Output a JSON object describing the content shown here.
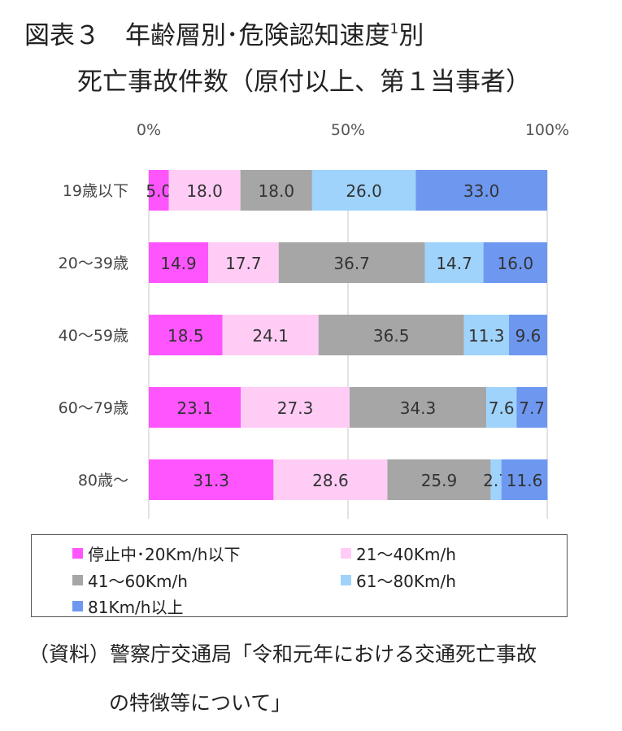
{
  "title": {
    "line1_main": "図表３　年齢層別･危険認知速度",
    "line1_sup": "1",
    "line1_tail": "別",
    "line2": "死亡事故件数（原付以上、第１当事者）"
  },
  "source": {
    "line1": "（資料）警察庁交通局「令和元年における交通死亡事故",
    "line2": "の特徴等について」"
  },
  "chart_data": {
    "type": "bar",
    "orientation": "horizontal",
    "stacked": "percent",
    "categories": [
      "19歳以下",
      "20～39歳",
      "40～59歳",
      "60～79歳",
      "80歳～"
    ],
    "x_ticks": [
      "0%",
      "50%",
      "100%"
    ],
    "x_range": [
      0,
      100
    ],
    "legend_placement": "bottom",
    "series": [
      {
        "name": "停止中･20Km/h以下",
        "color": "#ff55ff",
        "values": [
          5.0,
          14.9,
          18.5,
          23.1,
          31.3
        ]
      },
      {
        "name": "21～40Km/h",
        "color": "#ffccf5",
        "values": [
          18.0,
          17.7,
          24.1,
          27.3,
          28.6
        ]
      },
      {
        "name": "41～60Km/h",
        "color": "#a6a6a6",
        "values": [
          18.0,
          36.7,
          36.5,
          34.3,
          25.9
        ]
      },
      {
        "name": "61～80Km/h",
        "color": "#9fd3fb",
        "values": [
          26.0,
          14.7,
          11.3,
          7.6,
          2.7
        ]
      },
      {
        "name": "81Km/h以上",
        "color": "#6e98f0",
        "values": [
          33.0,
          16.0,
          9.6,
          7.7,
          11.6
        ]
      }
    ]
  }
}
